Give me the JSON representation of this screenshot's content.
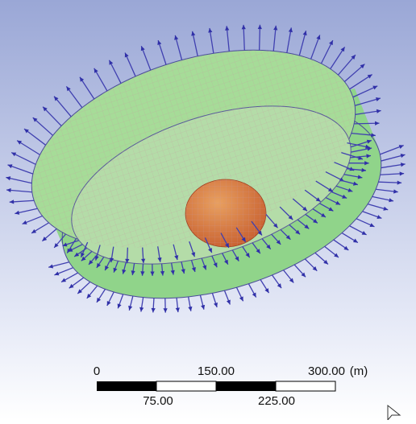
{
  "scale_bar": {
    "top_labels": [
      "0",
      "150.00",
      "300.00"
    ],
    "unit": "(m)",
    "bottom_labels": [
      "75.00",
      "225.00"
    ]
  }
}
